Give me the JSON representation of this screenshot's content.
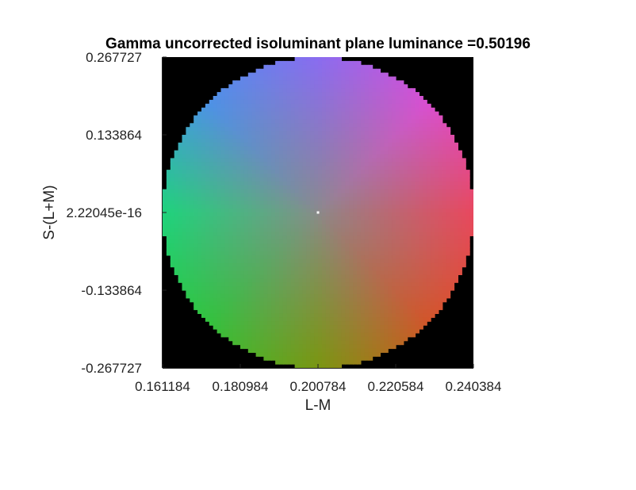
{
  "chart_data": {
    "type": "heatmap",
    "title": "Gamma uncorrected isoluminant plane luminance =0.50196",
    "xlabel": "L-M",
    "ylabel": "S-(L+M)",
    "xlim": [
      0.161184,
      0.240384
    ],
    "ylim": [
      -0.267727,
      0.267727
    ],
    "x_ticks": [
      "0.161184",
      "0.180984",
      "0.200784",
      "0.220584",
      "0.240384"
    ],
    "y_ticks": [
      "0.267727",
      "0.133864",
      "2.22045e-16",
      "-0.133864",
      "-0.267727"
    ],
    "x_tick_values": [
      0.161184,
      0.180984,
      0.200784,
      0.220584,
      0.240384
    ],
    "y_tick_values": [
      0.267727,
      0.133864,
      0.0,
      -0.133864,
      -0.267727
    ],
    "background_color": "#000000",
    "center_point": {
      "x": 0.200784,
      "y": 0.0,
      "color": "#ffffff"
    },
    "hue_colors": {
      "right": "#e8485e",
      "upper_right": "#d94fd0",
      "top": "#8a6cf0",
      "upper_left": "#4d92e6",
      "left": "#1ed37c",
      "lower_left": "#33c23e",
      "bottom": "#7a9611",
      "lower_right": "#d2552a",
      "center": "#8a8a8a"
    },
    "grid": false,
    "legend": "none"
  }
}
